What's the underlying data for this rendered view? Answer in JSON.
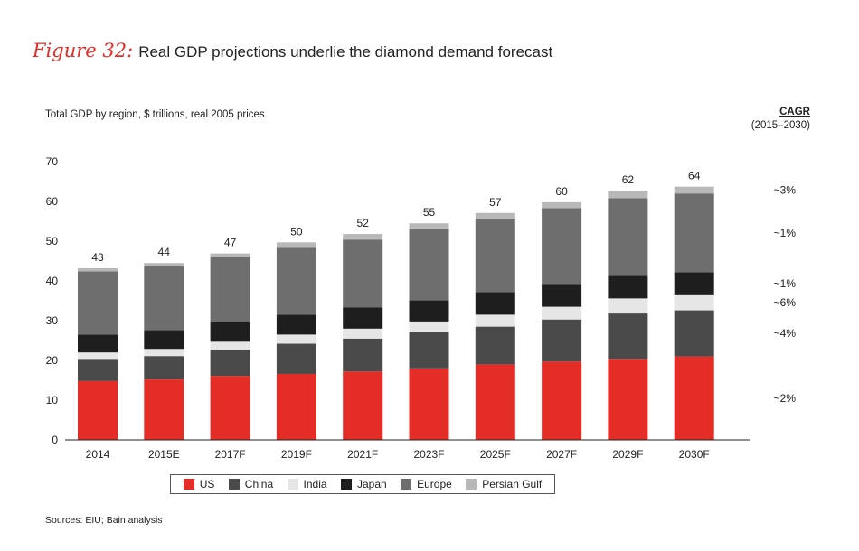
{
  "figure": {
    "label": "Figure 32:",
    "title": "Real GDP projections underlie the diamond demand forecast"
  },
  "subtitle": "Total GDP by region, $ trillions, real 2005 prices",
  "cagr_header": {
    "title": "CAGR",
    "period": "(2015–2030)"
  },
  "source": "Sources: EIU; Bain analysis",
  "chart_data": {
    "type": "bar",
    "stacked": true,
    "title": "Real GDP projections underlie the diamond demand forecast",
    "ylabel": "Total GDP by region, $ trillions, real 2005 prices",
    "xlabel": "",
    "ylim": [
      0,
      70
    ],
    "yticks": [
      0,
      10,
      20,
      30,
      40,
      50,
      60,
      70
    ],
    "grid": false,
    "legend_position": "bottom",
    "categories": [
      "2014",
      "2015E",
      "2017F",
      "2019F",
      "2021F",
      "2023F",
      "2025F",
      "2027F",
      "2029F",
      "2030F"
    ],
    "totals": [
      "43",
      "44",
      "47",
      "50",
      "52",
      "55",
      "57",
      "60",
      "62",
      "64"
    ],
    "series": [
      {
        "name": "US",
        "color": "#e52d27",
        "values": [
          14.8,
          15.2,
          16.1,
          16.6,
          17.2,
          18.0,
          19.0,
          19.7,
          20.4,
          21.0
        ]
      },
      {
        "name": "China",
        "color": "#4a4a4a",
        "values": [
          5.6,
          5.9,
          6.6,
          7.6,
          8.3,
          9.2,
          9.5,
          10.6,
          11.4,
          11.6
        ]
      },
      {
        "name": "India",
        "color": "#e6e6e6",
        "values": [
          1.6,
          1.8,
          2.0,
          2.3,
          2.5,
          2.6,
          3.0,
          3.2,
          3.8,
          3.8
        ]
      },
      {
        "name": "Japan",
        "color": "#1e1e1e",
        "values": [
          4.5,
          4.7,
          4.9,
          5.0,
          5.3,
          5.3,
          5.7,
          5.7,
          5.7,
          5.8
        ]
      },
      {
        "name": "Europe",
        "color": "#6e6e6e",
        "values": [
          15.9,
          16.1,
          16.4,
          16.8,
          17.1,
          18.1,
          18.5,
          19.1,
          19.5,
          19.8
        ]
      },
      {
        "name": "Persian Gulf",
        "color": "#b8b8b8",
        "values": [
          0.8,
          0.8,
          0.9,
          1.4,
          1.4,
          1.3,
          1.4,
          1.5,
          1.9,
          1.7
        ]
      }
    ],
    "cagr": [
      {
        "series": "Persian Gulf",
        "label": "~3%"
      },
      {
        "series": "Europe",
        "label": "~1%"
      },
      {
        "series": "Japan",
        "label": "~1%"
      },
      {
        "series": "India",
        "label": "~6%"
      },
      {
        "series": "China",
        "label": "~4%"
      },
      {
        "series": "US",
        "label": "~2%"
      }
    ]
  }
}
